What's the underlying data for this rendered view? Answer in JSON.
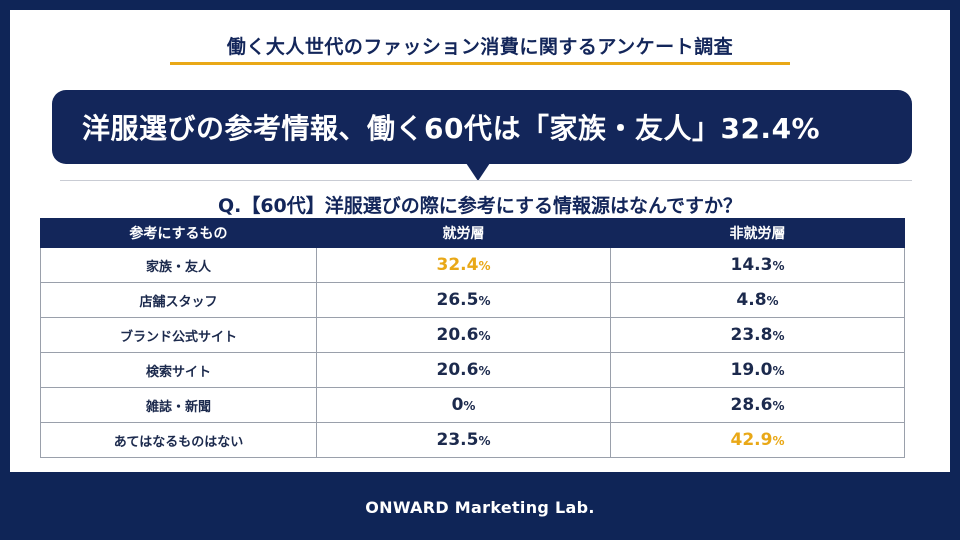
{
  "survey_title": "働く大人世代のファッション消費に関するアンケート調査",
  "headline": "洋服選びの参考情報、働く60代は「家族・友人」32.4%",
  "question": "Q.【60代】洋服選びの際に参考にする情報源はなんですか？",
  "table": {
    "columns": [
      "参考にするもの",
      "就労層",
      "非就労層"
    ],
    "unit": "%",
    "highlight_color": "#e9a817",
    "rows": [
      {
        "label": "家族・友人",
        "employed": "32.4",
        "unemployed": "14.3",
        "highlight": "employed"
      },
      {
        "label": "店舗スタッフ",
        "employed": "26.5",
        "unemployed": "4.8",
        "highlight": ""
      },
      {
        "label": "ブランド公式サイト",
        "employed": "20.6",
        "unemployed": "23.8",
        "highlight": ""
      },
      {
        "label": "検索サイト",
        "employed": "20.6",
        "unemployed": "19.0",
        "highlight": ""
      },
      {
        "label": "雑誌・新聞",
        "employed": "0",
        "unemployed": "28.6",
        "highlight": ""
      },
      {
        "label": "あてはなるものはない",
        "employed": "23.5",
        "unemployed": "42.9",
        "highlight": "unemployed"
      }
    ]
  },
  "footer": "ONWARD Marketing Lab.",
  "colors": {
    "navy": "#13265a",
    "accent": "#e9a817",
    "background": "#0f2557"
  }
}
